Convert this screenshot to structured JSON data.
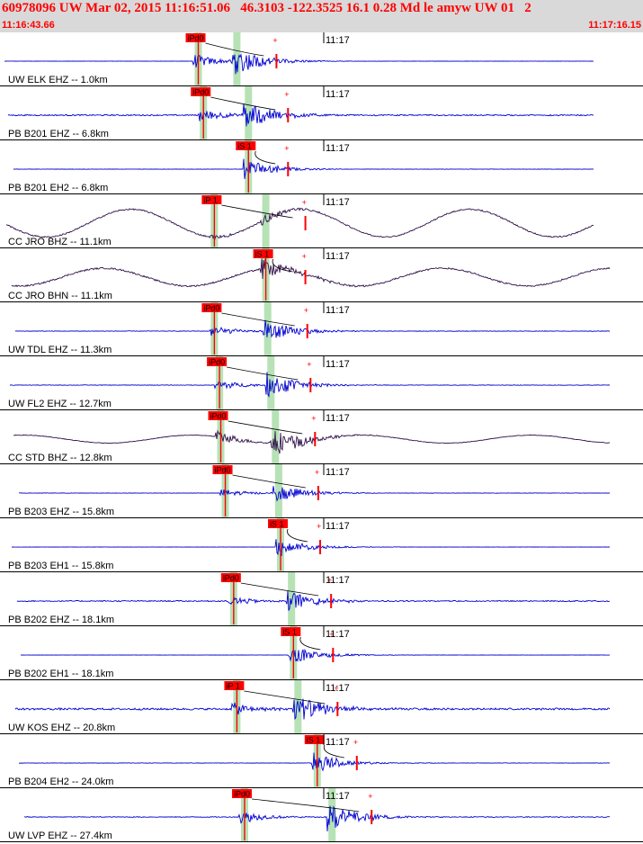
{
  "header": {
    "title": "60978096 UW Mar 02, 2015 11:16:51.06   46.3103 -122.3525 16.1 0.28 Md le amyw UW 01   2",
    "start_time": "11:16:43.66",
    "end_time": "11:17:16.15"
  },
  "minute_label": "11:17",
  "colors": {
    "header_bg": "#d9d9d9",
    "header_text": "#ff0000",
    "trace_blue": "#0000d0",
    "trace_dark": "#30104a",
    "pick_red": "#ff0000",
    "window_green": "#b6e2b6"
  },
  "channels": [
    {
      "label": "UW ELK EHZ -- 1.0km",
      "color": "blue",
      "pick": "iPd0",
      "pick_x": 0.3,
      "s_x": 0.36,
      "noise": 0.05,
      "event": 0.95,
      "long_period": 0
    },
    {
      "label": "PB B201 EHZ -- 6.8km",
      "color": "blue",
      "pick": "iPd0",
      "pick_x": 0.308,
      "s_x": 0.378,
      "noise": 0.22,
      "event": 0.95,
      "long_period": 0
    },
    {
      "label": "PB B201 EH2 -- 6.8km",
      "color": "blue",
      "pick": "iS 1",
      "pick_x": 0.378,
      "s_x": 0.378,
      "noise": 0.06,
      "event": 0.6,
      "long_period": 0
    },
    {
      "label": "CC JRO BHZ -- 11.1km",
      "color": "dark",
      "pick": "iP 1",
      "pick_x": 0.325,
      "s_x": 0.405,
      "noise": 0.25,
      "event": 0.3,
      "long_period": 0.7
    },
    {
      "label": "CC JRO BHN -- 11.1km",
      "color": "dark",
      "pick": "iS 1",
      "pick_x": 0.405,
      "s_x": 0.405,
      "noise": 0.28,
      "event": 0.7,
      "long_period": 0.45
    },
    {
      "label": "UW TDL EHZ -- 11.3km",
      "color": "blue",
      "pick": "iPd0",
      "pick_x": 0.325,
      "s_x": 0.408,
      "noise": 0.1,
      "event": 0.75,
      "long_period": 0
    },
    {
      "label": "UW FL2 EHZ -- 12.7km",
      "color": "blue",
      "pick": "iPd0",
      "pick_x": 0.333,
      "s_x": 0.413,
      "noise": 0.1,
      "event": 0.8,
      "long_period": 0
    },
    {
      "label": "CC STD BHZ -- 12.8km",
      "color": "dark",
      "pick": "iPd0",
      "pick_x": 0.335,
      "s_x": 0.42,
      "noise": 0.1,
      "event": 0.9,
      "long_period": 0.2
    },
    {
      "label": "PB B203 EHZ -- 15.8km",
      "color": "blue",
      "pick": "iPd0",
      "pick_x": 0.342,
      "s_x": 0.425,
      "noise": 0.07,
      "event": 0.6,
      "long_period": 0
    },
    {
      "label": "PB B203 EH1 -- 15.8km",
      "color": "blue",
      "pick": "iS 1",
      "pick_x": 0.428,
      "s_x": 0.428,
      "noise": 0.04,
      "event": 0.55,
      "long_period": 0
    },
    {
      "label": "PB B202 EHZ -- 18.1km",
      "color": "blue",
      "pick": "iPd0",
      "pick_x": 0.355,
      "s_x": 0.445,
      "noise": 0.2,
      "event": 0.7,
      "long_period": 0
    },
    {
      "label": "PB B202 EH1 -- 18.1km",
      "color": "blue",
      "pick": "iS 1",
      "pick_x": 0.448,
      "s_x": 0.448,
      "noise": 0.05,
      "event": 0.55,
      "long_period": 0
    },
    {
      "label": "UW KOS EHZ -- 20.8km",
      "color": "blue",
      "pick": "iP 1",
      "pick_x": 0.36,
      "s_x": 0.455,
      "noise": 0.35,
      "event": 0.95,
      "long_period": 0
    },
    {
      "label": "PB B204 EH2 -- 24.0km",
      "color": "blue",
      "pick": "iS 1",
      "pick_x": 0.485,
      "s_x": 0.485,
      "noise": 0.08,
      "event": 0.6,
      "long_period": 0
    },
    {
      "label": "UW LVP EHZ -- 27.4km",
      "color": "blue",
      "pick": "iPd0",
      "pick_x": 0.372,
      "s_x": 0.508,
      "noise": 0.15,
      "event": 0.9,
      "long_period": 0
    }
  ]
}
